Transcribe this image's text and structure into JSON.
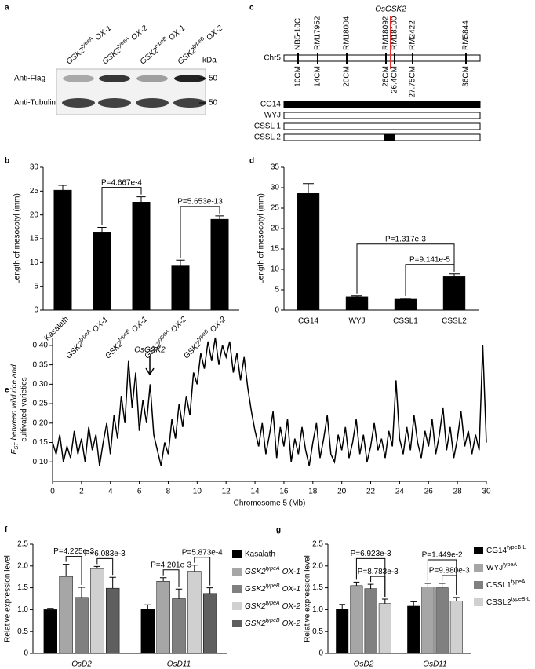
{
  "blot": {
    "panel": "a",
    "lanes": [
      {
        "base": "GSK2",
        "sup": "typeA",
        "suffix": "OX-1"
      },
      {
        "base": "GSK2",
        "sup": "typeA",
        "suffix": "OX-2"
      },
      {
        "base": "GSK2",
        "sup": "typeB",
        "suffix": "OX-1"
      },
      {
        "base": "GSK2",
        "sup": "typeB",
        "suffix": "OX-2"
      }
    ],
    "rows": [
      "Anti-Flag",
      "Anti-Tubulin"
    ],
    "unit": "kDa",
    "markers": [
      50,
      50
    ]
  },
  "map": {
    "panel": "c",
    "gene": "OsGSK2",
    "chromosome": "Chr5",
    "markers": [
      {
        "name": "NB5-10C",
        "position": "10CM"
      },
      {
        "name": "RM17952",
        "position": "14CM"
      },
      {
        "name": "RM18004",
        "position": "20CM"
      },
      {
        "name": "RM18092",
        "position": "26CM"
      },
      {
        "name": "RM18100",
        "position": "26.4CM"
      },
      {
        "name": "RM2422",
        "position": "27.75CM"
      },
      {
        "name": "RM5844",
        "position": "36CM"
      }
    ],
    "lines": [
      "CG14",
      "WYJ",
      "CSSL 1",
      "CSSL 2"
    ]
  },
  "chart_data": [
    {
      "type": "bar",
      "panel": "b",
      "ylabel": "Length of mesocotyl (mm)",
      "categories": [
        "Kasalath",
        {
          "base": "GSK2",
          "sup": "typeA",
          "suffix": "OX-1"
        },
        {
          "base": "GSK2",
          "sup": "typeB",
          "suffix": "OX-1"
        },
        {
          "base": "GSK2",
          "sup": "typeA",
          "suffix": "OX-2"
        },
        {
          "base": "GSK2",
          "sup": "typeB",
          "suffix": "OX-2"
        }
      ],
      "values": [
        25.2,
        16.3,
        22.7,
        9.3,
        19.1
      ],
      "errors": [
        1.0,
        1.1,
        1.1,
        1.2,
        0.7
      ],
      "color": "#000000",
      "ylim": [
        0,
        30
      ],
      "yticks": [
        0,
        5,
        10,
        15,
        20,
        25,
        30
      ],
      "annotations": [
        "P=4.667e-4",
        "P=5.653e-13"
      ]
    },
    {
      "type": "bar",
      "panel": "d",
      "ylabel": "Length of mesocotyl (mm)",
      "categories": [
        "CG14",
        "WYJ",
        "CSSL1",
        "CSSL2"
      ],
      "values": [
        28.6,
        3.3,
        2.7,
        8.2
      ],
      "errors": [
        2.4,
        0.2,
        0.2,
        0.7
      ],
      "color": "#000000",
      "ylim": [
        0,
        35
      ],
      "yticks": [
        0,
        5,
        10,
        15,
        20,
        25,
        30,
        35
      ],
      "annotations": [
        "P=1.317e-3",
        "P=9.141e-5"
      ]
    },
    {
      "type": "line",
      "panel": "e",
      "ylabel": {
        "base": "F",
        "sub": "ST",
        "suffix": "between wild rice and"
      },
      "ylabel2": "cultivated varieties",
      "xlabel": "Chromosome 5 (Mb)",
      "annotation": "OsGSK2",
      "color": "#000000",
      "x": [
        0,
        0.25,
        0.5,
        0.75,
        1,
        1.25,
        1.5,
        1.75,
        2,
        2.25,
        2.5,
        2.75,
        3,
        3.25,
        3.5,
        3.75,
        4,
        4.25,
        4.5,
        4.75,
        5,
        5.25,
        5.5,
        5.75,
        6,
        6.25,
        6.5,
        6.75,
        7,
        7.25,
        7.5,
        7.75,
        8,
        8.25,
        8.5,
        8.75,
        9,
        9.25,
        9.5,
        9.75,
        10,
        10.25,
        10.5,
        10.75,
        11,
        11.25,
        11.5,
        11.75,
        12,
        12.25,
        12.5,
        12.75,
        13,
        13.25,
        13.5,
        13.75,
        14,
        14.25,
        14.5,
        14.75,
        15,
        15.25,
        15.5,
        15.75,
        16,
        16.25,
        16.5,
        16.75,
        17,
        17.25,
        17.5,
        17.75,
        18,
        18.25,
        18.5,
        18.75,
        19,
        19.25,
        19.5,
        19.75,
        20,
        20.25,
        20.5,
        20.75,
        21,
        21.25,
        21.5,
        21.75,
        22,
        22.25,
        22.5,
        22.75,
        23,
        23.25,
        23.5,
        23.75,
        24,
        24.25,
        24.5,
        24.75,
        25,
        25.25,
        25.5,
        25.75,
        26,
        26.25,
        26.5,
        26.75,
        27,
        27.25,
        27.5,
        27.75,
        28,
        28.25,
        28.5,
        28.75,
        29,
        29.25,
        29.5,
        29.75,
        30
      ],
      "values": [
        0.15,
        0.12,
        0.17,
        0.1,
        0.14,
        0.11,
        0.18,
        0.12,
        0.16,
        0.1,
        0.19,
        0.13,
        0.17,
        0.09,
        0.15,
        0.2,
        0.12,
        0.22,
        0.16,
        0.27,
        0.2,
        0.36,
        0.24,
        0.33,
        0.18,
        0.26,
        0.2,
        0.3,
        0.17,
        0.13,
        0.09,
        0.15,
        0.12,
        0.21,
        0.16,
        0.25,
        0.19,
        0.27,
        0.22,
        0.33,
        0.3,
        0.38,
        0.34,
        0.41,
        0.36,
        0.42,
        0.35,
        0.4,
        0.37,
        0.41,
        0.33,
        0.38,
        0.31,
        0.37,
        0.29,
        0.23,
        0.18,
        0.14,
        0.2,
        0.12,
        0.17,
        0.23,
        0.11,
        0.19,
        0.14,
        0.21,
        0.1,
        0.16,
        0.12,
        0.19,
        0.13,
        0.09,
        0.15,
        0.2,
        0.11,
        0.16,
        0.22,
        0.12,
        0.1,
        0.17,
        0.13,
        0.19,
        0.11,
        0.15,
        0.21,
        0.12,
        0.17,
        0.1,
        0.14,
        0.2,
        0.13,
        0.16,
        0.11,
        0.18,
        0.14,
        0.31,
        0.16,
        0.12,
        0.19,
        0.13,
        0.22,
        0.15,
        0.11,
        0.18,
        0.14,
        0.21,
        0.12,
        0.17,
        0.24,
        0.13,
        0.19,
        0.11,
        0.16,
        0.23,
        0.14,
        0.18,
        0.12,
        0.17,
        0.13,
        0.4,
        0.15
      ],
      "xlim": [
        0,
        30
      ],
      "xticks": [
        0,
        2,
        4,
        6,
        8,
        10,
        12,
        14,
        16,
        18,
        20,
        22,
        24,
        26,
        28,
        30
      ],
      "ylim": [
        0.05,
        0.42
      ],
      "yticks": [
        {
          "value": 0.1,
          "label": "0.10"
        },
        0.15,
        {
          "value": 0.2,
          "label": "0.20"
        },
        0.25,
        {
          "value": 0.3,
          "label": "0.30"
        },
        0.35,
        {
          "value": 0.4,
          "label": "0.40"
        }
      ]
    },
    {
      "type": "bar",
      "panel": "f",
      "ylabel": "Relative expression level",
      "categories": [
        "OsD2",
        "OsD11"
      ],
      "series": [
        {
          "name": "Kasalath",
          "color": "#000000",
          "values": [
            1.0,
            1.01
          ],
          "errors": [
            0.03,
            0.1
          ]
        },
        {
          "name": {
            "base": "GSK2",
            "sup": "typeA",
            "suffix": "OX-1"
          },
          "color": "#a6a6a6",
          "values": [
            1.76,
            1.65
          ],
          "errors": [
            0.28,
            0.08
          ]
        },
        {
          "name": {
            "base": "GSK2",
            "sup": "typeB",
            "suffix": "OX-1"
          },
          "color": "#808080",
          "values": [
            1.28,
            1.25
          ],
          "errors": [
            0.23,
            0.22
          ]
        },
        {
          "name": {
            "base": "GSK2",
            "sup": "typeA",
            "suffix": "OX-2"
          },
          "color": "#d0d0d0",
          "values": [
            1.94,
            1.88
          ],
          "errors": [
            0.05,
            0.14
          ]
        },
        {
          "name": {
            "base": "GSK2",
            "sup": "typeB",
            "suffix": "OX-2"
          },
          "color": "#5f5f5f",
          "values": [
            1.49,
            1.37
          ],
          "errors": [
            0.25,
            0.13
          ]
        }
      ],
      "ylim": [
        0,
        2.5
      ],
      "yticks": [
        0,
        0.5,
        {
          "value": 1,
          "label": "1.0"
        },
        1.5,
        {
          "value": 2,
          "label": "2.0"
        },
        2.5
      ],
      "annotations": [
        "P=4.225e-3",
        "P=6.083e-3",
        "P=4.201e-3",
        "P=5.873e-4"
      ]
    },
    {
      "type": "bar",
      "panel": "g",
      "ylabel": "Relative expression level",
      "categories": [
        "OsD2",
        "OsD11"
      ],
      "series": [
        {
          "name": {
            "base": "CG14",
            "sup": "typeB-L"
          },
          "color": "#000000",
          "values": [
            1.02,
            1.08
          ],
          "errors": [
            0.1,
            0.1
          ]
        },
        {
          "name": {
            "base": "WYJ",
            "sup": "typeA"
          },
          "color": "#a6a6a6",
          "values": [
            1.55,
            1.52
          ],
          "errors": [
            0.08,
            0.08
          ]
        },
        {
          "name": {
            "base": "CSSL1",
            "sup": "typeA"
          },
          "color": "#808080",
          "values": [
            1.48,
            1.5
          ],
          "errors": [
            0.1,
            0.1
          ]
        },
        {
          "name": {
            "base": "CSSL2",
            "sup": "typeB-L"
          },
          "color": "#d0d0d0",
          "values": [
            1.14,
            1.2
          ],
          "errors": [
            0.1,
            0.08
          ]
        }
      ],
      "ylim": [
        0,
        2.5
      ],
      "yticks": [
        0,
        0.5,
        {
          "value": 1,
          "label": "1.0"
        },
        1.5,
        {
          "value": 2,
          "label": "2.0"
        },
        2.5
      ],
      "annotations": [
        "P=6.923e-3",
        "P=8.783e-3",
        "P=1.449e-2",
        "P=9.880e-3"
      ]
    }
  ]
}
